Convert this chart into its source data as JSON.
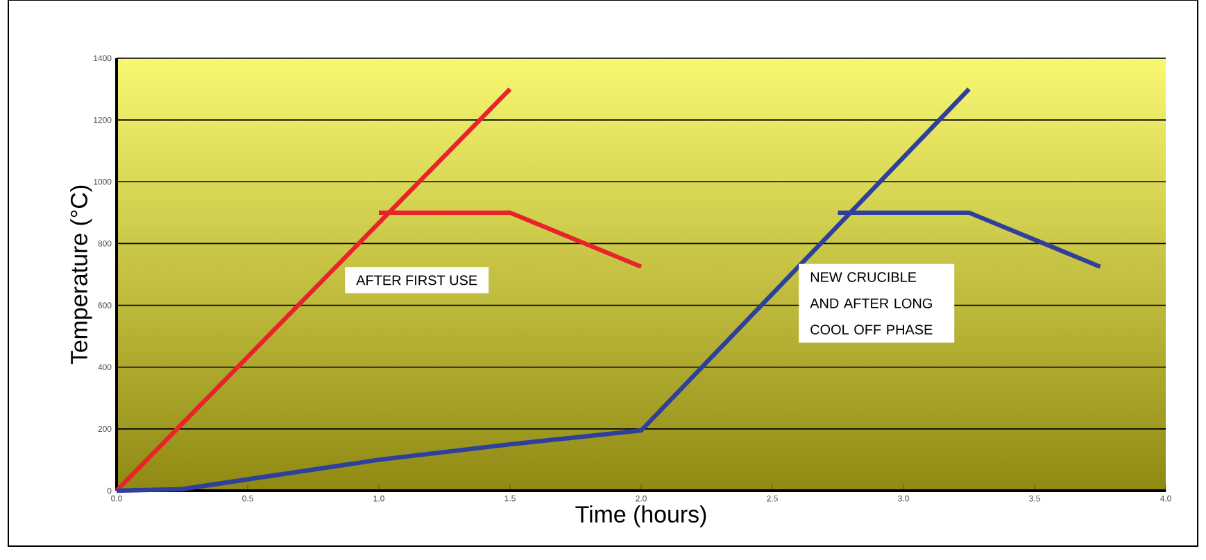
{
  "chart_data": {
    "type": "line",
    "xlabel": "Time (hours)",
    "ylabel": "Temperature (°C)",
    "series": [
      {
        "color": "#e8232a",
        "x": [
          0,
          1.5
        ],
        "values": [
          0,
          1300
        ]
      },
      {
        "color": "#e8232a",
        "x": [
          1.0,
          1.5,
          2.0
        ],
        "values": [
          900,
          900,
          725
        ]
      },
      {
        "color": "#2e3f9c",
        "x": [
          0,
          0.25,
          1.0,
          1.5,
          2.0,
          3.25
        ],
        "values": [
          0,
          5,
          100,
          150,
          195,
          1300
        ]
      },
      {
        "color": "#2e3f9c",
        "x": [
          2.75,
          3.25,
          3.75
        ],
        "values": [
          900,
          900,
          725
        ]
      }
    ],
    "xlim": [
      0,
      4
    ],
    "ylim": [
      0,
      1400
    ],
    "xticks": [
      {
        "value": 0,
        "label": "0.0"
      },
      {
        "value": 0.5,
        "label": "0.5"
      },
      {
        "value": 1,
        "label": "1.0"
      },
      {
        "value": 1.5,
        "label": "1.5"
      },
      {
        "value": 2,
        "label": "2.0"
      },
      {
        "value": 2.5,
        "label": "2.5"
      },
      {
        "value": 3,
        "label": "3.0"
      },
      {
        "value": 3.5,
        "label": "3.5"
      },
      {
        "value": 4,
        "label": "4.0"
      }
    ],
    "yticks": [
      0,
      200,
      400,
      600,
      800,
      1000,
      1200,
      1400
    ],
    "annotations": [
      "AFTER FIRST USE",
      "NEW CRUCIBLE\nAND AFTER LONG\nCOOL OFF PHASE"
    ],
    "grid": "y",
    "marker": "none",
    "line_style": "solid"
  }
}
